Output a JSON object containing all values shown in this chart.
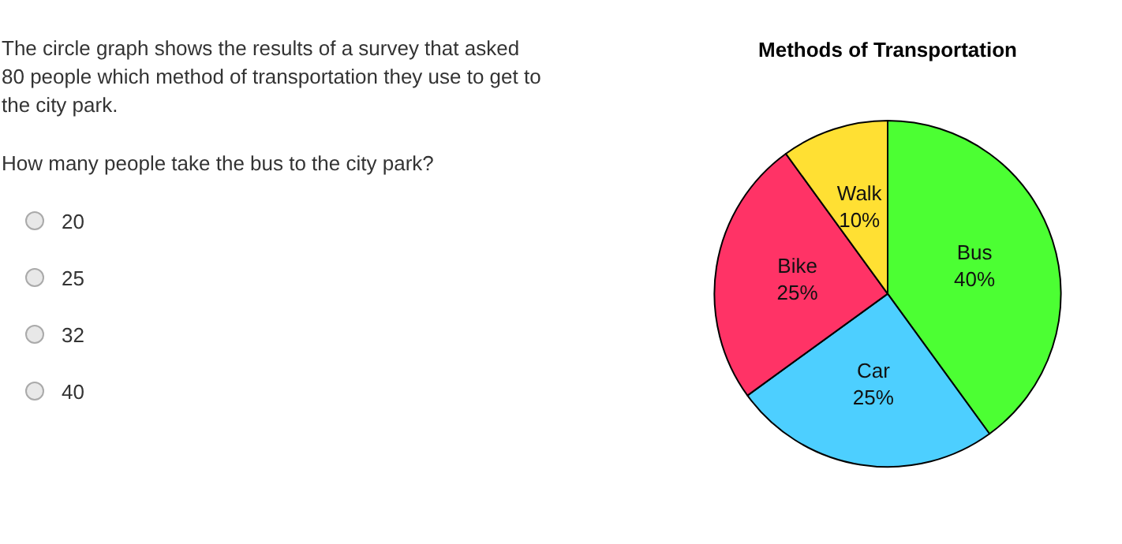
{
  "chart_data": {
    "type": "pie",
    "title": "Methods of Transportation",
    "categories": [
      "Bus",
      "Car",
      "Bike",
      "Walk"
    ],
    "values": [
      40,
      25,
      25,
      10
    ],
    "colors": [
      "#4cff33",
      "#4dcfff",
      "#ff3366",
      "#ffe033"
    ],
    "value_labels": [
      "40%",
      "25%",
      "25%",
      "10%"
    ],
    "legend": false,
    "annotations": [
      "The circle graph shows the results of a survey that asked 80 people which method of transportation they use to get to the city park.",
      "How many people take the bus to the city park?",
      "20",
      "25",
      "32",
      "40"
    ]
  }
}
